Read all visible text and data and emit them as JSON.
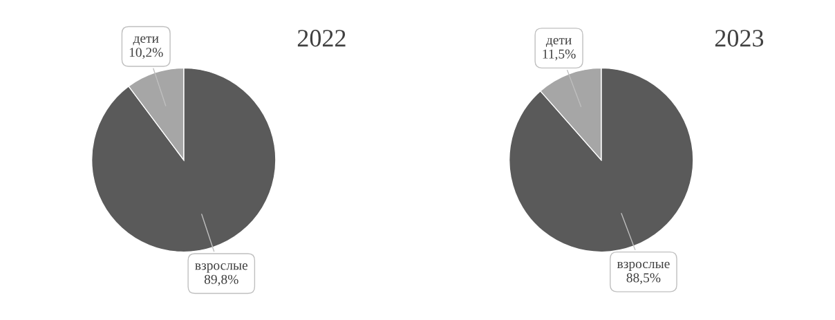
{
  "chart_data": [
    {
      "type": "pie",
      "title": "2022",
      "categories": [
        "взрослые",
        "дети"
      ],
      "values": [
        89.8,
        10.2
      ],
      "colors": [
        "#5a5a5a",
        "#a6a6a6"
      ],
      "value_labels": [
        "89,8%",
        "10,2%"
      ]
    },
    {
      "type": "pie",
      "title": "2023",
      "categories": [
        "взрослые",
        "дети"
      ],
      "values": [
        88.5,
        11.5
      ],
      "colors": [
        "#5a5a5a",
        "#a6a6a6"
      ],
      "value_labels": [
        "88,5%",
        "11,5%"
      ]
    }
  ]
}
